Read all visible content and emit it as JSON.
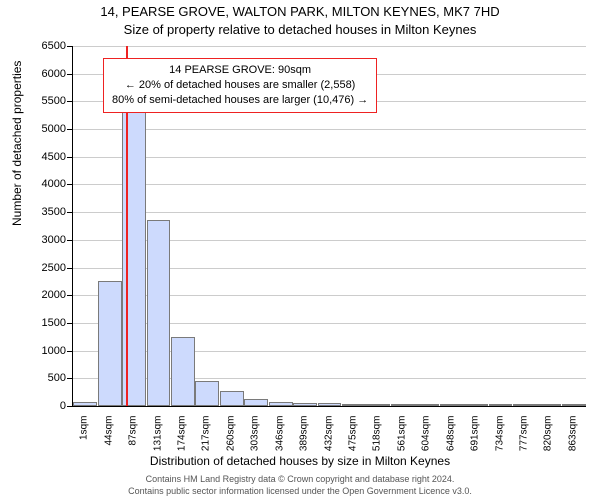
{
  "chart": {
    "type": "histogram",
    "title_line1": "14, PEARSE GROVE, WALTON PARK, MILTON KEYNES, MK7 7HD",
    "title_line2": "Size of property relative to detached houses in Milton Keynes",
    "y_axis_title": "Number of detached properties",
    "x_axis_title": "Distribution of detached houses by size in Milton Keynes",
    "ylim": [
      0,
      6500
    ],
    "ytick_step": 500,
    "yticks": [
      0,
      500,
      1000,
      1500,
      2000,
      2500,
      3000,
      3500,
      4000,
      4500,
      5000,
      5500,
      6000,
      6500
    ],
    "xtick_labels": [
      "1sqm",
      "44sqm",
      "87sqm",
      "131sqm",
      "174sqm",
      "217sqm",
      "260sqm",
      "303sqm",
      "346sqm",
      "389sqm",
      "432sqm",
      "475sqm",
      "518sqm",
      "561sqm",
      "604sqm",
      "648sqm",
      "691sqm",
      "734sqm",
      "777sqm",
      "820sqm",
      "863sqm"
    ],
    "bar_values": [
      80,
      2250,
      5700,
      3350,
      1250,
      450,
      280,
      120,
      80,
      50,
      50,
      40,
      20,
      10,
      5,
      5,
      5,
      5,
      5,
      5,
      5
    ],
    "bar_fill": "#cddafd",
    "bar_border": "#7a7a7a",
    "background_color": "#ffffff",
    "grid_color": "#cccccc",
    "marker_value_sqm": 90,
    "marker_color": "#ee2222",
    "annotation": {
      "line1": "14 PEARSE GROVE: 90sqm",
      "line2": "← 20% of detached houses are smaller (2,558)",
      "line3": "80% of semi-detached houses are larger (10,476) →",
      "border_color": "#ee2222",
      "background": "#ffffff",
      "fontsize": 11
    },
    "title_fontsize": 13,
    "axis_label_fontsize": 12,
    "tick_fontsize": 11
  },
  "footer": {
    "line1": "Contains HM Land Registry data © Crown copyright and database right 2024.",
    "line2": "Contains public sector information licensed under the Open Government Licence v3.0.",
    "color": "#555555",
    "fontsize": 9
  }
}
